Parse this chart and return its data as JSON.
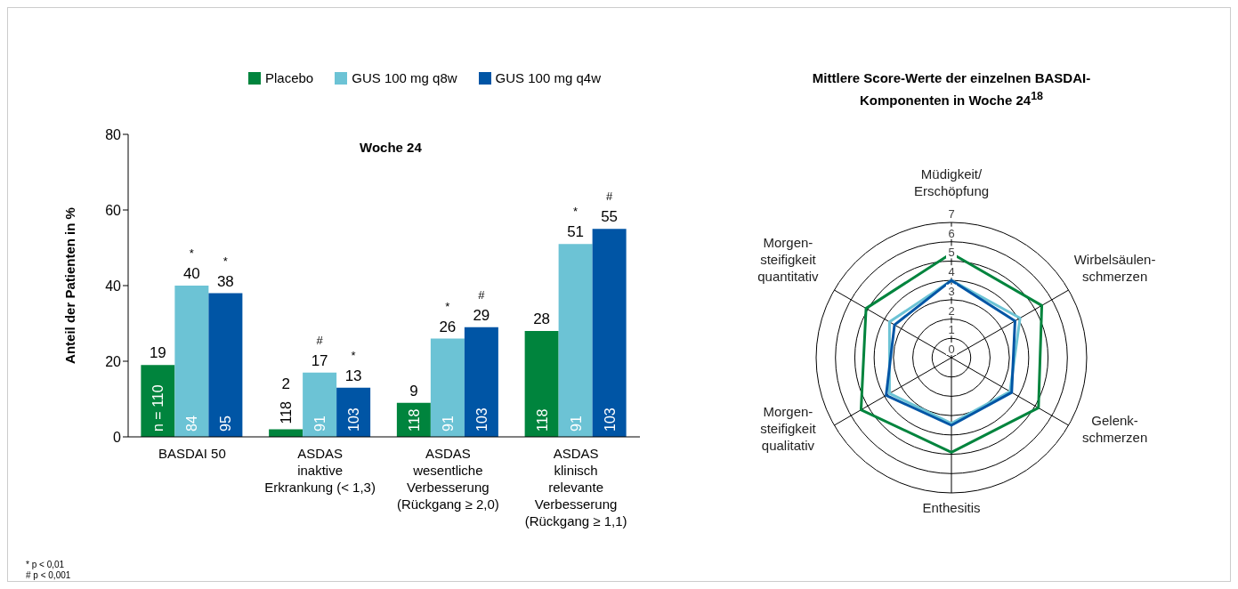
{
  "chart_data": [
    {
      "type": "bar",
      "title": "Woche 24",
      "ylabel": "Anteil der Patienten in %",
      "categories": [
        "BASDAI 50",
        "ASDAS\ninaktive\nErkrankung (< 1,3)",
        "ASDAS\nwesentliche\nVerbesserung\n(Rückgang ≥ 2,0)",
        "ASDAS\nklinisch\nrelevante\nVerbesserung\n(Rückgang ≥ 1,1)"
      ],
      "series": [
        {
          "name": "Placebo",
          "color": "#00843d",
          "values": [
            19,
            2,
            9,
            28
          ],
          "value_labels": [
            "19",
            "2",
            "9",
            "28"
          ]
        },
        {
          "name": "GUS 100 mg q8w",
          "color": "#6cc3d5",
          "values": [
            40,
            17,
            26,
            51
          ],
          "value_labels": [
            "*\n40",
            "#\n17",
            "*\n26",
            "*\n51"
          ]
        },
        {
          "name": "GUS 100 mg q4w",
          "color": "#0055a5",
          "values": [
            38,
            13,
            29,
            55
          ],
          "value_labels": [
            "*\n38",
            "*\n13",
            "#\n29",
            "#\n55"
          ]
        }
      ],
      "ylim": [
        0,
        80
      ],
      "yticks": [
        0,
        20,
        40,
        60,
        80
      ],
      "legend": "top",
      "annotations": [
        {
          "text": "n = 110",
          "x": "BASDAI 50",
          "y": 0
        },
        {
          "text": "84",
          "x": "BASDAI 50",
          "y": 0
        },
        {
          "text": "95",
          "x": "BASDAI 50",
          "y": 0
        },
        {
          "text": "118",
          "x": "ASDAS\ninaktive\nErkrankung (< 1,3)",
          "y": 0
        },
        {
          "text": "91",
          "x": "ASDAS\ninaktive\nErkrankung (< 1,3)",
          "y": 0
        },
        {
          "text": "103",
          "x": "ASDAS\ninaktive\nErkrankung (< 1,3)",
          "y": 0
        },
        {
          "text": "118",
          "x": "ASDAS\nwesentliche\nVerbesserung\n(Rückgang ≥ 2,0)",
          "y": 0
        },
        {
          "text": "91",
          "x": "ASDAS\nwesentliche\nVerbesserung\n(Rückgang ≥ 2,0)",
          "y": 0
        },
        {
          "text": "103",
          "x": "ASDAS\nwesentliche\nVerbesserung\n(Rückgang ≥ 2,0)",
          "y": 0
        },
        {
          "text": "118",
          "x": "ASDAS\nklinisch\nrelevante\nVerbesserung\n(Rückgang ≥ 1,1)",
          "y": 0
        },
        {
          "text": "91",
          "x": "ASDAS\nklinisch\nrelevante\nVerbesserung\n(Rückgang ≥ 1,1)",
          "y": 0
        },
        {
          "text": "103",
          "x": "ASDAS\nklinisch\nrelevante\nVerbesserung\n(Rückgang ≥ 1,1)",
          "y": 0
        },
        "* p < 0,01",
        "# p < 0,001"
      ]
    },
    {
      "type": "radar",
      "title": "Mittlere Score-Werte der einzelnen BASDAI-Komponenten in Woche 24$^{18}$",
      "categories": [
        "Müdigkeit/\nErschöpfung",
        "Wirbelsäulen-\nschmerzen",
        "Gelenk-\nschmerzen",
        "Enthesitis",
        "Morgen-\nsteifigkeit\nqualitativ",
        "Morgen-\nsteifigkeit\nquantitativ"
      ],
      "series": [
        {
          "color": "#00843d",
          "values": [
            5.4,
            5.4,
            5.2,
            4.9,
            5.4,
            5.1
          ]
        },
        {
          "color": "#6cc3d5",
          "values": [
            4.0,
            4.1,
            3.5,
            3.4,
            3.7,
            3.7
          ]
        },
        {
          "color": "#0055a5",
          "values": [
            4.0,
            3.8,
            3.6,
            3.5,
            3.9,
            3.4
          ]
        }
      ],
      "ylim": [
        0,
        7
      ],
      "yticks": [
        0,
        1,
        2,
        3,
        4,
        5,
        6,
        7
      ],
      "grid": true,
      "legend": false
    }
  ]
}
